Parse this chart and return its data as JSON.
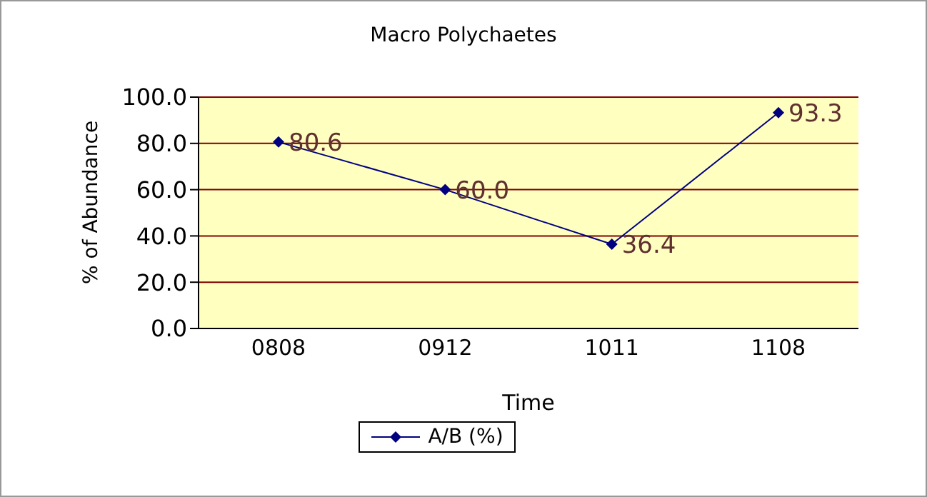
{
  "chart_data": {
    "type": "line",
    "title": "Macro Polychaetes",
    "xlabel": "Time",
    "ylabel": "% of Abundance",
    "categories": [
      "0808",
      "0912",
      "1011",
      "1108"
    ],
    "series": [
      {
        "name": "A/B (%)",
        "color": "#000080",
        "values": [
          80.6,
          60.0,
          36.4,
          93.3
        ],
        "value_labels": [
          "80.6",
          "60.0",
          "36.4",
          "93.3"
        ]
      }
    ],
    "ylim": [
      0,
      100
    ],
    "yticks": [
      {
        "value": 0,
        "label": "0.0"
      },
      {
        "value": 20,
        "label": "20.0"
      },
      {
        "value": 40,
        "label": "40.0"
      },
      {
        "value": 60,
        "label": "60.0"
      },
      {
        "value": 80,
        "label": "80.0"
      },
      {
        "value": 100,
        "label": "100.0"
      }
    ],
    "grid": "y",
    "legend": "bottom",
    "marker": "diamond",
    "line_style": "solid"
  }
}
